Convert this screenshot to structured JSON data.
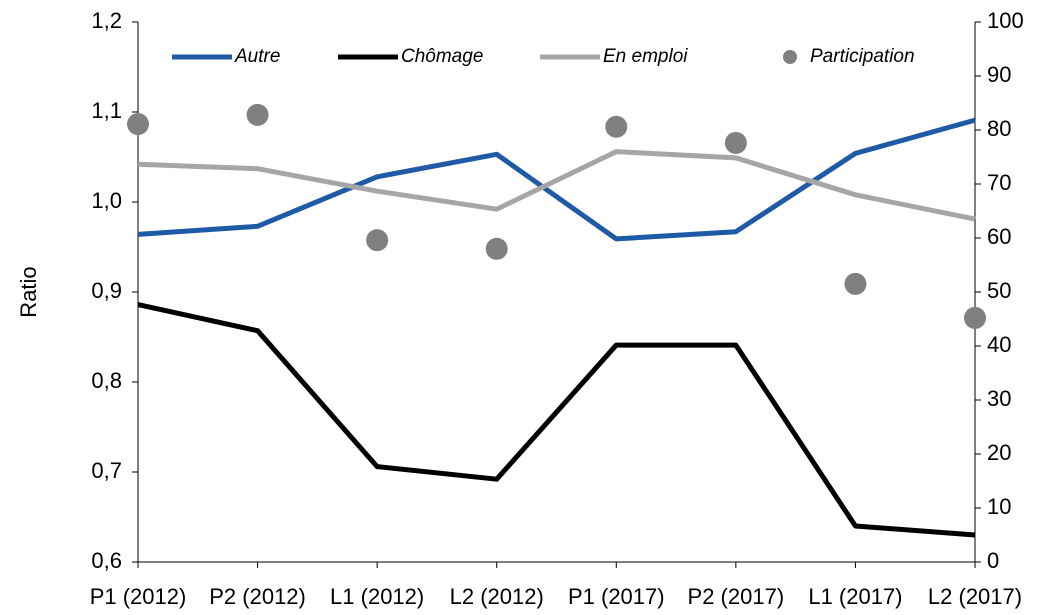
{
  "chart_data": {
    "type": "line",
    "y_label": "Ratio",
    "categories": [
      "P1 (2012)",
      "P2 (2012)",
      "L1 (2012)",
      "L2 (2012)",
      "P1 (2017)",
      "P2 (2017)",
      "L1 (2017)",
      "L2 (2017)"
    ],
    "series": [
      {
        "name": "Autre",
        "color": "#1f5aa6",
        "values": [
          0.964,
          0.973,
          1.028,
          1.053,
          0.959,
          0.967,
          1.054,
          1.091
        ]
      },
      {
        "name": "Chômage",
        "color": "#000000",
        "values": [
          0.886,
          0.857,
          0.706,
          0.692,
          0.841,
          0.841,
          0.64,
          0.63
        ]
      },
      {
        "name": "En emploi",
        "color": "#a6a6a6",
        "values": [
          1.042,
          1.037,
          1.012,
          0.992,
          1.056,
          1.049,
          1.008,
          0.981
        ]
      },
      {
        "name": "Participation",
        "color": "#808080",
        "type": "scatter",
        "axis": "y2",
        "values": [
          81.1,
          82.8,
          59.6,
          58,
          80.6,
          77.6,
          51.5,
          45.2
        ]
      }
    ],
    "ylim": [
      0.6,
      1.2
    ],
    "yticks": [
      {
        "value": 0.6,
        "label": "0,6"
      },
      {
        "value": 0.7,
        "label": "0,7"
      },
      {
        "value": 0.8,
        "label": "0,8"
      },
      {
        "value": 0.9,
        "label": "0,9"
      },
      {
        "value": 1.0,
        "label": "1,0"
      },
      {
        "value": 1.1,
        "label": "1,1"
      },
      {
        "value": 1.2,
        "label": "1,2"
      }
    ],
    "y2lim": [
      0,
      100
    ],
    "y2ticks": [
      0,
      10,
      20,
      30,
      40,
      50,
      60,
      70,
      80,
      90,
      100
    ],
    "legend": "top"
  }
}
